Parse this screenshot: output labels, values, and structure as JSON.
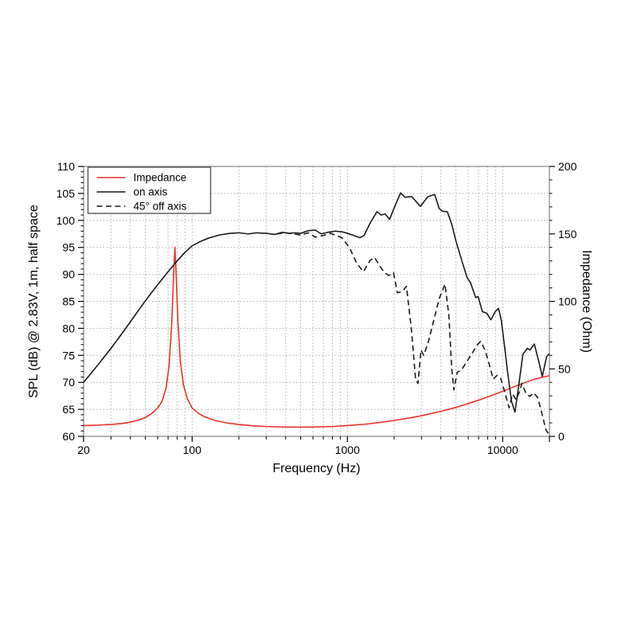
{
  "chart_data": {
    "type": "line",
    "title": "",
    "xlabel": "Frequency (Hz)",
    "ylabel_left": "SPL (dB) @ 2.83V, 1m, half space",
    "ylabel_right": "Impedance (Ohm)",
    "x_scale": "log",
    "xlim": [
      20,
      20000
    ],
    "ylim_left": [
      60,
      110
    ],
    "ylim_right": [
      0,
      200
    ],
    "x_tick_labels": [
      20,
      100,
      1000,
      10000
    ],
    "y_tick_labels_left": [
      60,
      65,
      70,
      75,
      80,
      85,
      90,
      95,
      100,
      105,
      110
    ],
    "y_tick_labels_right": [
      0,
      50,
      100,
      150,
      200
    ],
    "y_minor_step_left": 1,
    "y_minor_step_right": 10,
    "grid": "dotted",
    "legend_position": "top-left",
    "colors": {
      "impedance": "#e8332a",
      "black_trace": "#1a1a1a",
      "grid": "#b0b0b0",
      "frame": "#8c8c8c"
    },
    "legend": [
      {
        "label": "Impedance",
        "style": "solid",
        "color": "#e8332a"
      },
      {
        "label": "on axis",
        "style": "solid",
        "color": "#1a1a1a"
      },
      {
        "label": "45° off axis",
        "style": "dashed",
        "color": "#1a1a1a"
      }
    ],
    "series": [
      {
        "name": "Impedance",
        "axis": "right",
        "style": "solid",
        "color": "#e8332a",
        "unit": "Ohm",
        "points": [
          [
            20,
            8
          ],
          [
            25,
            8.3
          ],
          [
            30,
            8.8
          ],
          [
            35,
            9.5
          ],
          [
            40,
            10.5
          ],
          [
            45,
            12
          ],
          [
            50,
            14
          ],
          [
            55,
            17
          ],
          [
            60,
            21
          ],
          [
            64,
            26
          ],
          [
            68,
            36
          ],
          [
            71,
            52
          ],
          [
            74,
            85
          ],
          [
            76,
            120
          ],
          [
            77.5,
            140
          ],
          [
            79,
            118
          ],
          [
            81,
            85
          ],
          [
            84,
            55
          ],
          [
            88,
            38
          ],
          [
            93,
            28
          ],
          [
            100,
            21
          ],
          [
            110,
            17
          ],
          [
            120,
            14.5
          ],
          [
            140,
            11.8
          ],
          [
            170,
            9.8
          ],
          [
            200,
            8.8
          ],
          [
            250,
            7.8
          ],
          [
            300,
            7.3
          ],
          [
            400,
            6.9
          ],
          [
            500,
            6.8
          ],
          [
            600,
            6.9
          ],
          [
            800,
            7.3
          ],
          [
            1000,
            8
          ],
          [
            1300,
            9
          ],
          [
            1600,
            10.2
          ],
          [
            2000,
            11.8
          ],
          [
            2500,
            13.6
          ],
          [
            3000,
            15.3
          ],
          [
            4000,
            18.5
          ],
          [
            5000,
            21.5
          ],
          [
            6000,
            24.3
          ],
          [
            7000,
            26.8
          ],
          [
            8000,
            29.2
          ],
          [
            9000,
            31.4
          ],
          [
            10000,
            33.4
          ],
          [
            12000,
            37
          ],
          [
            14000,
            40
          ],
          [
            16000,
            42.3
          ],
          [
            18000,
            43.8
          ],
          [
            20000,
            45
          ]
        ]
      },
      {
        "name": "on axis",
        "axis": "left",
        "style": "solid",
        "color": "#1a1a1a",
        "unit": "dB",
        "points": [
          [
            20,
            70
          ],
          [
            25,
            73.4
          ],
          [
            30,
            76.3
          ],
          [
            35,
            78.9
          ],
          [
            40,
            81.2
          ],
          [
            45,
            83.3
          ],
          [
            50,
            85.1
          ],
          [
            55,
            86.7
          ],
          [
            60,
            88.1
          ],
          [
            70,
            90.5
          ],
          [
            80,
            92.5
          ],
          [
            90,
            94.1
          ],
          [
            100,
            95.3
          ],
          [
            115,
            96.2
          ],
          [
            130,
            96.8
          ],
          [
            150,
            97.3
          ],
          [
            175,
            97.6
          ],
          [
            200,
            97.7
          ],
          [
            230,
            97.5
          ],
          [
            260,
            97.7
          ],
          [
            300,
            97.6
          ],
          [
            340,
            97.4
          ],
          [
            380,
            97.8
          ],
          [
            420,
            97.6
          ],
          [
            460,
            97.7
          ],
          [
            500,
            97.6
          ],
          [
            560,
            98.1
          ],
          [
            620,
            98.2
          ],
          [
            680,
            97.5
          ],
          [
            750,
            97.8
          ],
          [
            830,
            98.0
          ],
          [
            920,
            97.9
          ],
          [
            1000,
            97.6
          ],
          [
            1100,
            97.2
          ],
          [
            1200,
            96.8
          ],
          [
            1280,
            97.2
          ],
          [
            1400,
            99.5
          ],
          [
            1550,
            101.6
          ],
          [
            1650,
            101.0
          ],
          [
            1750,
            101.2
          ],
          [
            1870,
            100.2
          ],
          [
            2000,
            102.3
          ],
          [
            2200,
            105.1
          ],
          [
            2350,
            104.3
          ],
          [
            2600,
            104.4
          ],
          [
            2950,
            102.6
          ],
          [
            3300,
            104.4
          ],
          [
            3650,
            104.8
          ],
          [
            3900,
            102.2
          ],
          [
            4100,
            101.7
          ],
          [
            4400,
            101.6
          ],
          [
            4700,
            99.3
          ],
          [
            5000,
            96.2
          ],
          [
            5500,
            92.2
          ],
          [
            5900,
            89.4
          ],
          [
            6200,
            88.5
          ],
          [
            6700,
            85.7
          ],
          [
            6950,
            85.9
          ],
          [
            7400,
            83.1
          ],
          [
            7900,
            82.8
          ],
          [
            8400,
            81.6
          ],
          [
            9000,
            83.2
          ],
          [
            9400,
            83.7
          ],
          [
            9800,
            81.5
          ],
          [
            10300,
            76.5
          ],
          [
            10800,
            71.5
          ],
          [
            11400,
            66.5
          ],
          [
            12000,
            64.5
          ],
          [
            12700,
            69.5
          ],
          [
            13500,
            75.2
          ],
          [
            14400,
            76.3
          ],
          [
            15000,
            76.0
          ],
          [
            16000,
            77.1
          ],
          [
            17200,
            73.5
          ],
          [
            18000,
            71.1
          ],
          [
            19200,
            74.8
          ],
          [
            20000,
            75.3
          ]
        ]
      },
      {
        "name": "45° off axis",
        "axis": "left",
        "style": "dashed",
        "color": "#1a1a1a",
        "unit": "dB",
        "points": [
          [
            350,
            97.5
          ],
          [
            400,
            97.7
          ],
          [
            450,
            97.5
          ],
          [
            500,
            97.3
          ],
          [
            560,
            97.7
          ],
          [
            620,
            96.9
          ],
          [
            700,
            97.2
          ],
          [
            780,
            97.6
          ],
          [
            850,
            97.2
          ],
          [
            920,
            96.8
          ],
          [
            1030,
            95.0
          ],
          [
            1150,
            92.0
          ],
          [
            1270,
            90.5
          ],
          [
            1400,
            92.6
          ],
          [
            1500,
            93.1
          ],
          [
            1620,
            91.5
          ],
          [
            1740,
            90.3
          ],
          [
            1850,
            89.8
          ],
          [
            1980,
            90.3
          ],
          [
            2100,
            86.6
          ],
          [
            2250,
            86.8
          ],
          [
            2400,
            87.8
          ],
          [
            2580,
            80.0
          ],
          [
            2750,
            70.5
          ],
          [
            2850,
            69.8
          ],
          [
            2980,
            76.0
          ],
          [
            3100,
            75.0
          ],
          [
            3300,
            77.2
          ],
          [
            3600,
            81.5
          ],
          [
            3900,
            85.5
          ],
          [
            4250,
            88.2
          ],
          [
            4500,
            82.5
          ],
          [
            4700,
            72.5
          ],
          [
            4850,
            68.6
          ],
          [
            5100,
            71.9
          ],
          [
            5400,
            72.2
          ],
          [
            5800,
            73.6
          ],
          [
            6300,
            75.2
          ],
          [
            6800,
            76.8
          ],
          [
            7200,
            77.6
          ],
          [
            7700,
            76.0
          ],
          [
            8200,
            73.3
          ],
          [
            8700,
            70.6
          ],
          [
            9200,
            71.3
          ],
          [
            9700,
            70.8
          ],
          [
            10300,
            68.3
          ],
          [
            11000,
            65.3
          ],
          [
            11600,
            67.8
          ],
          [
            12200,
            66.8
          ],
          [
            12800,
            68.2
          ],
          [
            13300,
            69.8
          ],
          [
            14200,
            67.8
          ],
          [
            15000,
            67.4
          ],
          [
            15800,
            68.1
          ],
          [
            16800,
            67.2
          ],
          [
            17800,
            64.5
          ],
          [
            19000,
            61.2
          ],
          [
            20000,
            60.2
          ]
        ]
      }
    ]
  }
}
